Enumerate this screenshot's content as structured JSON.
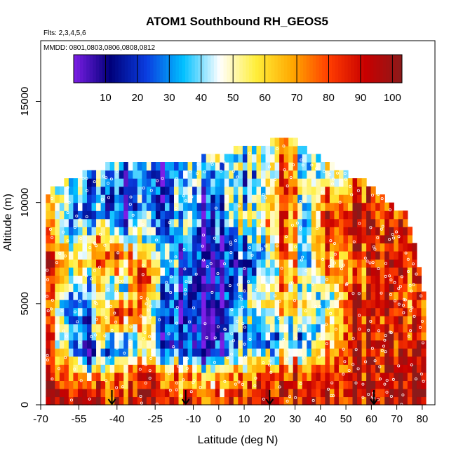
{
  "chart_data": {
    "type": "heatmap",
    "title": "ATOM1 Southbound RH_GEOS5",
    "flights_note": "Flts: 2,3,4,5,6",
    "dates_note": "MMDD: 0801,0803,0806,0808,0812",
    "xlabel": "Latitude (deg N)",
    "ylabel": "Altitude (m)",
    "xlim": [
      -70,
      85
    ],
    "ylim": [
      0,
      18000
    ],
    "x_ticks": [
      -70,
      -55,
      -40,
      -25,
      -10,
      0,
      10,
      20,
      30,
      40,
      50,
      60,
      70,
      80
    ],
    "y_ticks": [
      0,
      5000,
      10000,
      15000
    ],
    "colorbar": {
      "range": [
        0,
        103
      ],
      "ticks": [
        10,
        20,
        30,
        40,
        50,
        60,
        70,
        80,
        90,
        100
      ],
      "colors": [
        "#7c1ee6",
        "#00007a",
        "#0a3de0",
        "#00c0ff",
        "#ffffff",
        "#ffee3a",
        "#ffa800",
        "#ff3c00",
        "#c80000",
        "#8b1a1a"
      ]
    },
    "grid": {
      "lat_start": -68,
      "lat_end": 81,
      "alt_step": 400,
      "column_width_deg": 1.8,
      "columns": [
        {
          "lat": -68,
          "top": 10500,
          "profile": [
            [
              0,
              95
            ],
            [
              1500,
              88
            ],
            [
              3000,
              85
            ],
            [
              5000,
              80
            ],
            [
              7000,
              90
            ],
            [
              9000,
              75
            ],
            [
              10500,
              55
            ]
          ]
        },
        {
          "lat": -60,
          "top": 11000,
          "profile": [
            [
              0,
              90
            ],
            [
              1200,
              85
            ],
            [
              3000,
              35
            ],
            [
              5000,
              30
            ],
            [
              7000,
              60
            ],
            [
              9000,
              35
            ],
            [
              11000,
              45
            ]
          ]
        },
        {
          "lat": -52,
          "top": 11500,
          "profile": [
            [
              0,
              92
            ],
            [
              1000,
              80
            ],
            [
              2500,
              15
            ],
            [
              4500,
              25
            ],
            [
              6500,
              45
            ],
            [
              8000,
              60
            ],
            [
              9500,
              20
            ],
            [
              11500,
              35
            ]
          ]
        },
        {
          "lat": -45,
          "top": 11800,
          "profile": [
            [
              0,
              88
            ],
            [
              1200,
              70
            ],
            [
              2500,
              20
            ],
            [
              4000,
              75
            ],
            [
              5500,
              40
            ],
            [
              7000,
              85
            ],
            [
              8500,
              55
            ],
            [
              10000,
              20
            ],
            [
              11800,
              30
            ]
          ]
        },
        {
          "lat": -38,
          "top": 12000,
          "profile": [
            [
              0,
              85
            ],
            [
              1500,
              75
            ],
            [
              3000,
              20
            ],
            [
              4500,
              85
            ],
            [
              6000,
              30
            ],
            [
              7500,
              80
            ],
            [
              9000,
              15
            ],
            [
              12000,
              25
            ]
          ]
        },
        {
          "lat": -30,
          "top": 12000,
          "profile": [
            [
              0,
              90
            ],
            [
              1500,
              80
            ],
            [
              2500,
              45
            ],
            [
              4500,
              60
            ],
            [
              6000,
              90
            ],
            [
              8000,
              40
            ],
            [
              10000,
              25
            ],
            [
              12000,
              30
            ]
          ]
        },
        {
          "lat": -22,
          "top": 12000,
          "profile": [
            [
              0,
              92
            ],
            [
              1500,
              78
            ],
            [
              3000,
              20
            ],
            [
              5000,
              30
            ],
            [
              7000,
              50
            ],
            [
              9000,
              25
            ],
            [
              12000,
              20
            ]
          ]
        },
        {
          "lat": -14,
          "top": 12000,
          "profile": [
            [
              0,
              80
            ],
            [
              1500,
              70
            ],
            [
              2500,
              25
            ],
            [
              4500,
              15
            ],
            [
              7000,
              20
            ],
            [
              9000,
              40
            ],
            [
              12000,
              30
            ]
          ]
        },
        {
          "lat": -6,
          "top": 12200,
          "profile": [
            [
              0,
              75
            ],
            [
              1500,
              55
            ],
            [
              2500,
              10
            ],
            [
              5000,
              5
            ],
            [
              8000,
              8
            ],
            [
              10000,
              20
            ],
            [
              12200,
              40
            ]
          ]
        },
        {
          "lat": 2,
          "top": 12500,
          "profile": [
            [
              0,
              78
            ],
            [
              1500,
              60
            ],
            [
              3000,
              15
            ],
            [
              5000,
              10
            ],
            [
              8000,
              15
            ],
            [
              10000,
              35
            ],
            [
              12500,
              45
            ]
          ]
        },
        {
          "lat": 10,
          "top": 12700,
          "profile": [
            [
              0,
              85
            ],
            [
              1500,
              70
            ],
            [
              3000,
              30
            ],
            [
              5000,
              40
            ],
            [
              7000,
              15
            ],
            [
              9000,
              45
            ],
            [
              11000,
              30
            ],
            [
              12700,
              40
            ]
          ]
        },
        {
          "lat": 18,
          "top": 12800,
          "profile": [
            [
              0,
              88
            ],
            [
              1500,
              75
            ],
            [
              3000,
              20
            ],
            [
              5000,
              45
            ],
            [
              7000,
              25
            ],
            [
              9000,
              50
            ],
            [
              11000,
              35
            ],
            [
              12800,
              40
            ]
          ]
        },
        {
          "lat": 26,
          "top": 13400,
          "profile": [
            [
              0,
              92
            ],
            [
              1500,
              85
            ],
            [
              3000,
              40
            ],
            [
              5000,
              70
            ],
            [
              7000,
              80
            ],
            [
              9000,
              90
            ],
            [
              11000,
              85
            ],
            [
              13400,
              70
            ]
          ]
        },
        {
          "lat": 34,
          "top": 12700,
          "profile": [
            [
              0,
              90
            ],
            [
              1500,
              80
            ],
            [
              3000,
              30
            ],
            [
              5000,
              50
            ],
            [
              7000,
              40
            ],
            [
              9000,
              30
            ],
            [
              11000,
              45
            ],
            [
              12700,
              35
            ]
          ]
        },
        {
          "lat": 42,
          "top": 12000,
          "profile": [
            [
              0,
              92
            ],
            [
              1500,
              85
            ],
            [
              3000,
              55
            ],
            [
              5000,
              35
            ],
            [
              7000,
              70
            ],
            [
              9000,
              85
            ],
            [
              12000,
              40
            ]
          ]
        },
        {
          "lat": 50,
          "top": 11500,
          "profile": [
            [
              0,
              95
            ],
            [
              1500,
              90
            ],
            [
              3000,
              88
            ],
            [
              5000,
              85
            ],
            [
              7000,
              75
            ],
            [
              9000,
              92
            ],
            [
              11500,
              55
            ]
          ]
        },
        {
          "lat": 58,
          "top": 11000,
          "profile": [
            [
              0,
              95
            ],
            [
              1500,
              92
            ],
            [
              3000,
              90
            ],
            [
              5000,
              88
            ],
            [
              7000,
              80
            ],
            [
              9000,
              95
            ],
            [
              11000,
              80
            ]
          ]
        },
        {
          "lat": 66,
          "top": 10000,
          "profile": [
            [
              0,
              93
            ],
            [
              1500,
              90
            ],
            [
              3000,
              85
            ],
            [
              5000,
              80
            ],
            [
              7000,
              90
            ],
            [
              9000,
              85
            ],
            [
              10000,
              70
            ]
          ]
        },
        {
          "lat": 74,
          "top": 9500,
          "profile": [
            [
              0,
              95
            ],
            [
              2000,
              88
            ],
            [
              4000,
              82
            ],
            [
              6000,
              78
            ],
            [
              8000,
              90
            ],
            [
              9500,
              75
            ]
          ]
        },
        {
          "lat": 81,
          "top": 5500,
          "profile": [
            [
              0,
              92
            ],
            [
              2000,
              85
            ],
            [
              4000,
              80
            ],
            [
              5500,
              75
            ]
          ]
        }
      ]
    },
    "observation_points": {
      "color": "#ffffff",
      "style": "open-circle",
      "count": 420
    },
    "markers": {
      "style": "down-arrow",
      "latitudes": [
        -42,
        -13,
        20,
        61
      ]
    }
  }
}
